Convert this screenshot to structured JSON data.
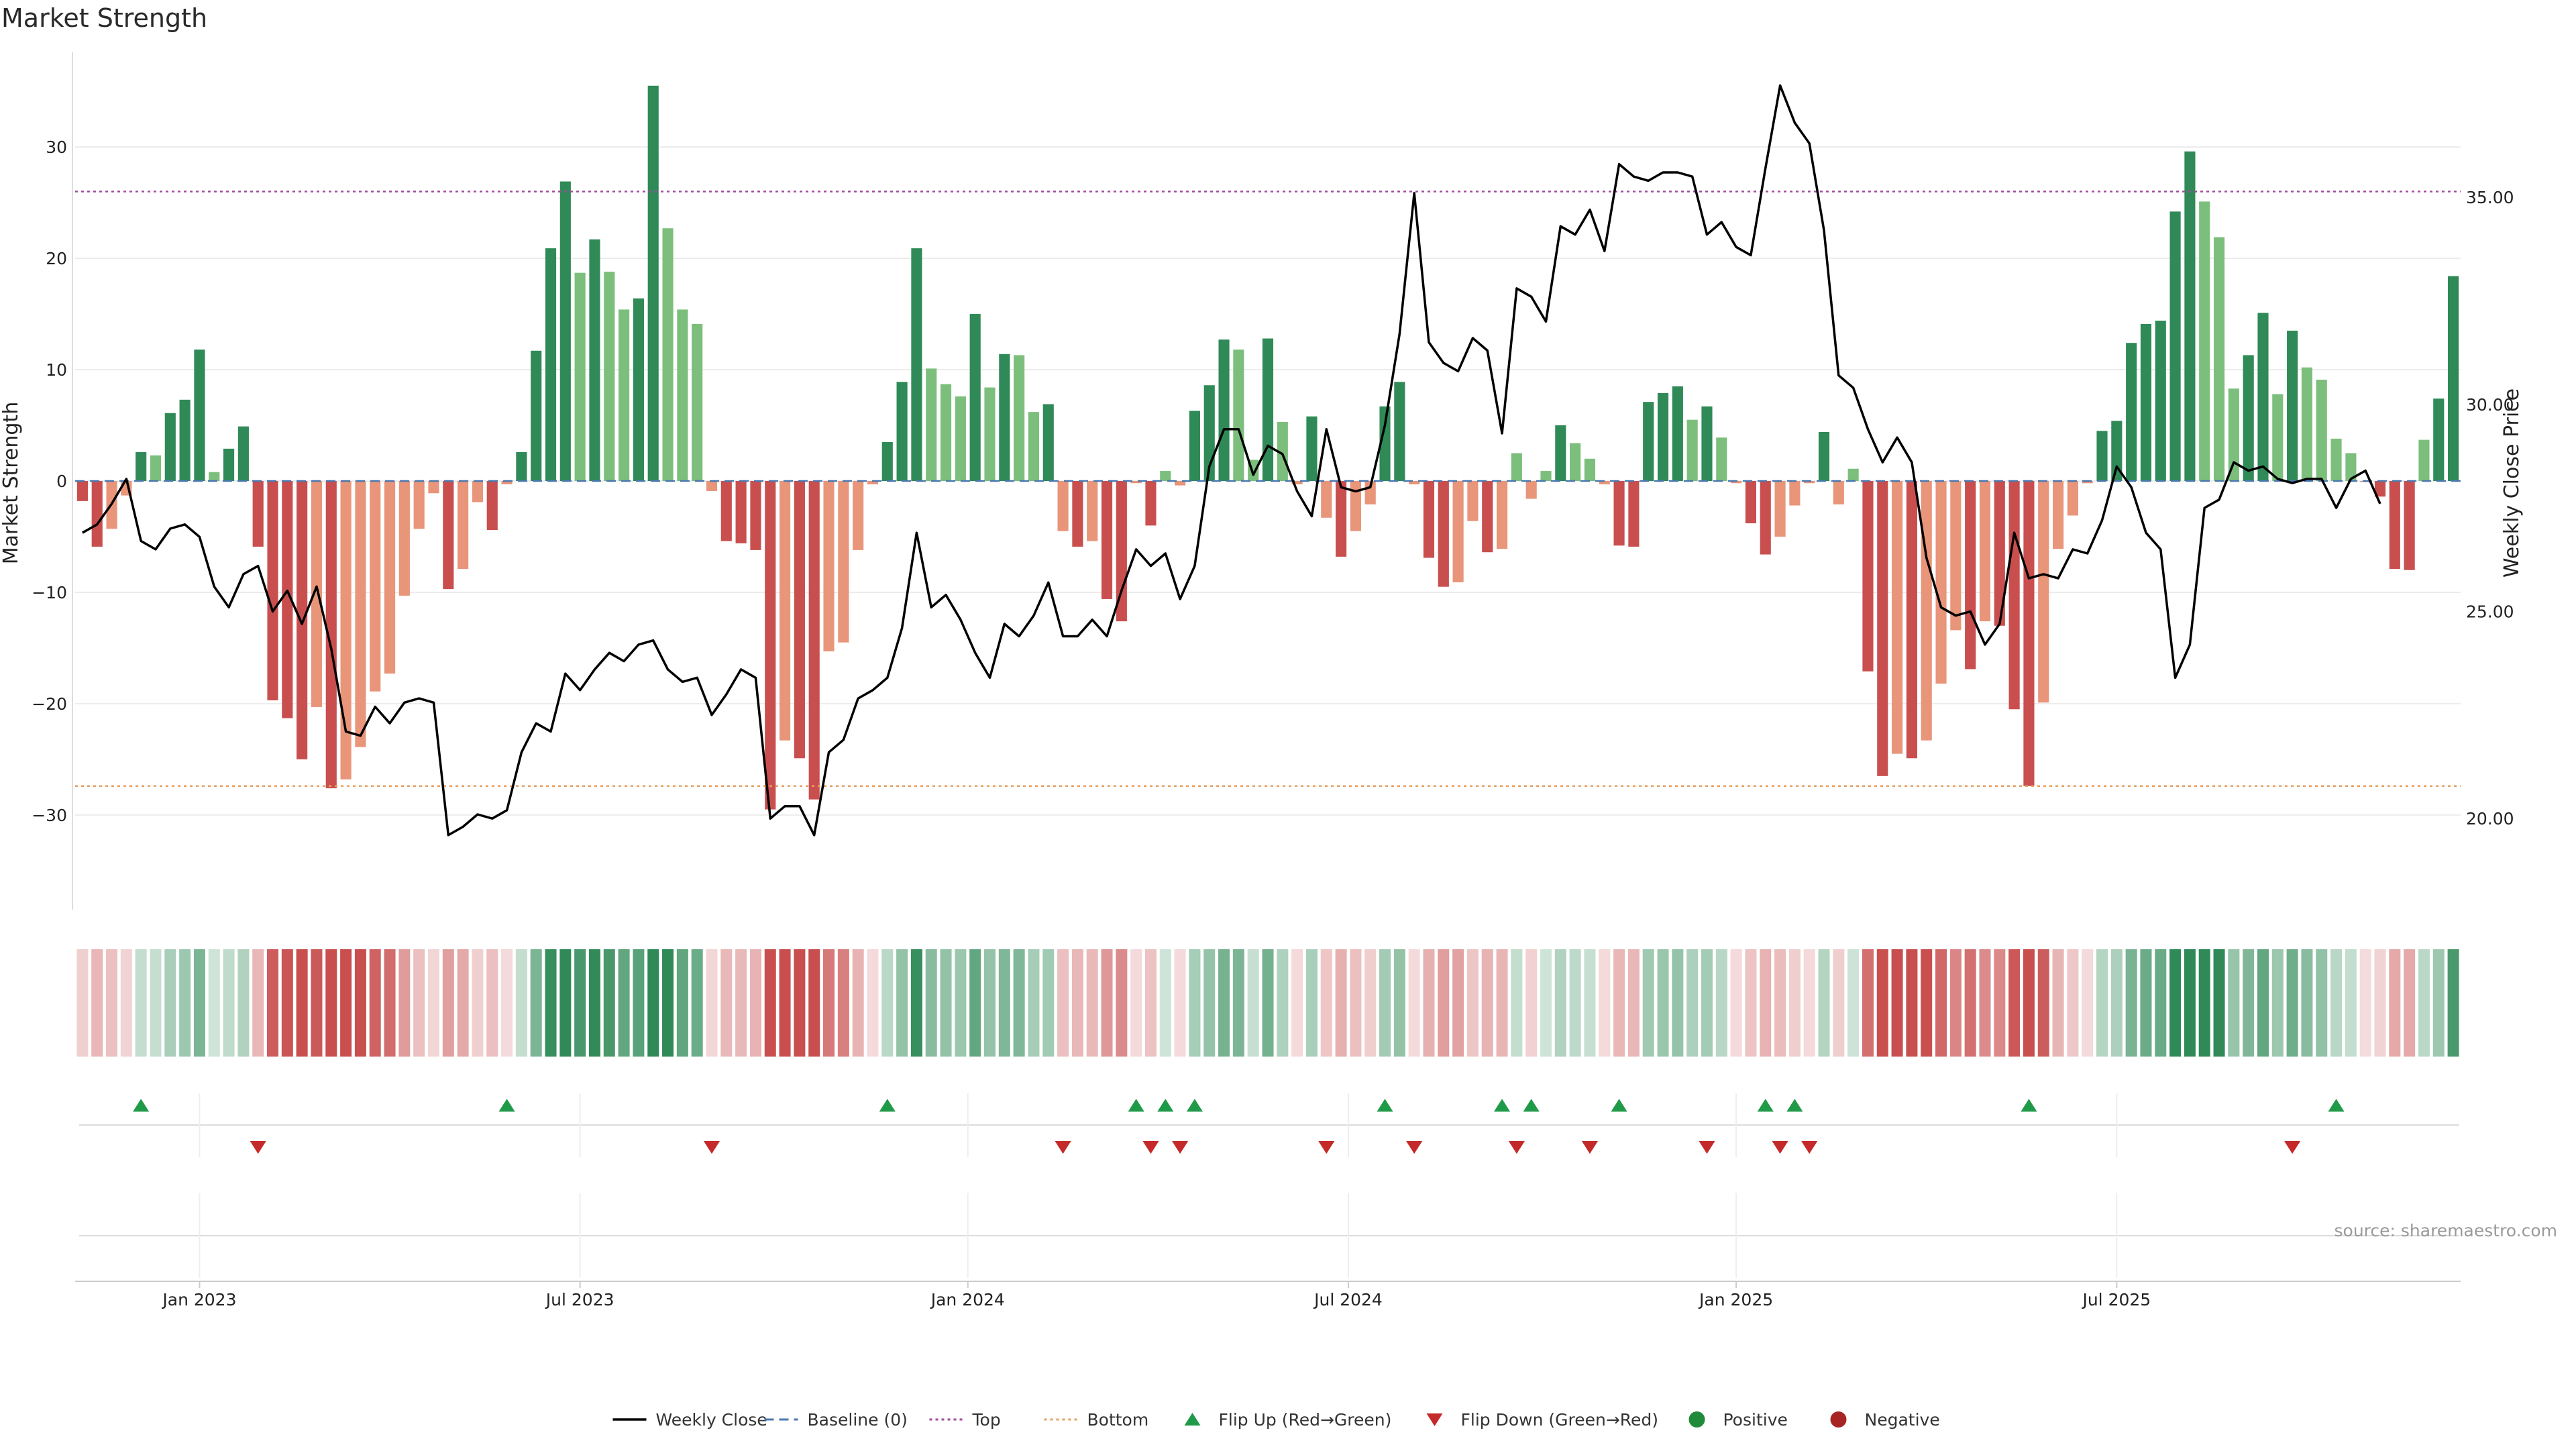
{
  "chart_data": {
    "type": "bar",
    "title": "Market Strength",
    "ylabel_left": "Market Strength",
    "ylabel_right": "Weekly Close Price",
    "ylim_left": [
      -38.5,
      38.5
    ],
    "ylim_right": [
      17.8,
      38.5
    ],
    "left_ticks": [
      30,
      20,
      10,
      0,
      -10,
      -20,
      -30
    ],
    "left_tick_labels": [
      "30",
      "20",
      "10",
      "0",
      "−10",
      "−20",
      "−30"
    ],
    "right_ticks": [
      35,
      30,
      25,
      20
    ],
    "right_tick_labels": [
      "35.00",
      "30.00",
      "25.00",
      "20.00"
    ],
    "x_ticks": [
      {
        "week": 8.5,
        "label": "Jan 2023"
      },
      {
        "week": 34.5,
        "label": "Jul 2023"
      },
      {
        "week": 61,
        "label": "Jan 2024"
      },
      {
        "week": 87,
        "label": "Jul 2024"
      },
      {
        "week": 113.5,
        "label": "Jan 2025"
      },
      {
        "week": 139.5,
        "label": "Jul 2025"
      }
    ],
    "top_level": 26,
    "bottom_level": -27.4,
    "strength": [
      -1.8,
      -5.9,
      -4.3,
      -1.3,
      2.6,
      2.3,
      6.1,
      7.3,
      11.8,
      0.8,
      2.9,
      4.9,
      -5.9,
      -19.7,
      -21.3,
      -25,
      -20.3,
      -27.6,
      -26.8,
      -23.9,
      -18.9,
      -17.3,
      -10.3,
      -4.3,
      -1.1,
      -9.7,
      -7.9,
      -1.9,
      -4.4,
      -0.3,
      2.6,
      11.7,
      20.9,
      26.9,
      18.7,
      21.7,
      18.8,
      15.4,
      16.4,
      35.5,
      22.7,
      15.4,
      14.1,
      -0.9,
      -5.4,
      -5.6,
      -6.2,
      -29.5,
      -23.3,
      -24.9,
      -28.6,
      -15.3,
      -14.5,
      -6.2,
      -0.3,
      3.5,
      8.9,
      20.9,
      10.1,
      8.7,
      7.6,
      15,
      8.4,
      11.4,
      11.3,
      6.2,
      6.9,
      -4.5,
      -5.9,
      -5.4,
      -10.6,
      -12.6,
      -0.2,
      -4,
      0.9,
      -0.4,
      6.3,
      8.6,
      12.7,
      11.8,
      1.9,
      12.8,
      5.3,
      -0.3,
      5.8,
      -3.3,
      -6.8,
      -4.5,
      -2.1,
      6.7,
      8.9,
      -0.3,
      -6.9,
      -9.5,
      -9.1,
      -3.6,
      -6.4,
      -6.1,
      2.5,
      -1.6,
      0.9,
      5,
      3.4,
      2,
      -0.3,
      -5.8,
      -5.9,
      7.1,
      7.9,
      8.5,
      5.5,
      6.7,
      3.9,
      -0.2,
      -3.8,
      -6.6,
      -5,
      -2.2,
      -0.2,
      4.4,
      -2.1,
      1.1,
      -17.1,
      -26.5,
      -24.5,
      -24.9,
      -23.3,
      -18.2,
      -13.4,
      -16.9,
      -12.6,
      -13,
      -20.5,
      -27.4,
      -19.9,
      -6.1,
      -3.1,
      -0.2,
      4.5,
      5.4,
      12.4,
      14.1,
      14.4,
      24.2,
      29.6,
      25.1,
      21.9,
      8.3,
      11.3,
      15.1,
      7.8,
      13.5,
      10.2,
      9.1,
      3.8,
      2.5,
      -0.1,
      -1.4,
      -7.9,
      -8,
      3.7,
      7.4,
      18.4
    ],
    "weekly_close": [
      26.9,
      27.1,
      27.6,
      28.2,
      26.7,
      26.5,
      27,
      27.1,
      26.8,
      25.6,
      25.1,
      25.9,
      26.1,
      25,
      25.5,
      24.7,
      25.6,
      24.1,
      22.1,
      22,
      22.7,
      22.3,
      22.8,
      22.9,
      22.8,
      19.6,
      19.8,
      20.1,
      20,
      20.2,
      21.6,
      22.3,
      22.1,
      23.5,
      23.1,
      23.6,
      24,
      23.8,
      24.2,
      24.3,
      23.6,
      23.3,
      23.4,
      22.5,
      23,
      23.6,
      23.4,
      20,
      20.3,
      20.3,
      19.6,
      21.6,
      21.9,
      22.9,
      23.1,
      23.4,
      24.6,
      26.9,
      25.1,
      25.4,
      24.8,
      24,
      23.4,
      24.7,
      24.4,
      24.9,
      25.7,
      24.4,
      24.4,
      24.8,
      24.4,
      25.5,
      26.5,
      26.1,
      26.4,
      25.3,
      26.1,
      28.5,
      29.4,
      29.4,
      28.3,
      29,
      28.8,
      27.9,
      27.3,
      29.4,
      28,
      27.9,
      28,
      29.5,
      31.7,
      35.1,
      31.5,
      31,
      30.8,
      31.6,
      31.3,
      29.3,
      32.8,
      32.6,
      32,
      34.3,
      34.1,
      34.7,
      33.7,
      35.8,
      35.5,
      35.4,
      35.6,
      35.6,
      35.5,
      34.1,
      34.4,
      33.8,
      33.6,
      35.7,
      37.7,
      36.8,
      36.3,
      34.2,
      30.7,
      30.4,
      29.4,
      28.6,
      29.2,
      28.6,
      26.3,
      25.1,
      24.9,
      25,
      24.2,
      24.7,
      26.9,
      25.8,
      25.9,
      25.8,
      26.5,
      26.4,
      27.2,
      28.5,
      28,
      26.9,
      26.5,
      23.4,
      24.2,
      27.5,
      27.7,
      28.6,
      28.4,
      28.5,
      28.2,
      28.1,
      28.2,
      28.2,
      27.5,
      28.2,
      28.4,
      27.6
    ]
  },
  "heatmap": {
    "strong_negative": "#c94f4f",
    "weak_negative": "#e8957a",
    "strong_positive": "#2f8a57",
    "weak_positive": "#7cbf7c",
    "baseline": "#4a78b0",
    "top_line": "#a04aa0",
    "bottom_line": "#e8a060",
    "flip_up_color": "#1f9a48",
    "flip_down_color": "#c42a2a"
  },
  "flip_up_weeks": [
    4,
    29,
    55,
    72,
    74,
    76,
    89,
    97,
    99,
    105,
    115,
    117,
    133,
    154
  ],
  "flip_down_weeks": [
    12,
    43,
    67,
    73,
    75,
    85,
    91,
    98,
    103,
    111,
    116,
    118,
    151
  ],
  "legend": [
    {
      "label": "Weekly Close",
      "symbol": "line-solid",
      "color": "#000000"
    },
    {
      "label": "Baseline (0)",
      "symbol": "line-dash",
      "color": "#4a78b0"
    },
    {
      "label": "Top",
      "symbol": "line-dot",
      "color": "#a04aa0"
    },
    {
      "label": "Bottom",
      "symbol": "line-dot",
      "color": "#e8a060"
    },
    {
      "label": "Flip Up (Red→Green)",
      "symbol": "triangle-up",
      "color": "#1f9a48"
    },
    {
      "label": "Flip Down (Green→Red)",
      "symbol": "triangle-down",
      "color": "#c42a2a"
    },
    {
      "label": "Positive",
      "symbol": "circle",
      "color": "#1f8a3a"
    },
    {
      "label": "Negative",
      "symbol": "circle",
      "color": "#a82424"
    }
  ],
  "source_text": "source: sharemaestro.com"
}
